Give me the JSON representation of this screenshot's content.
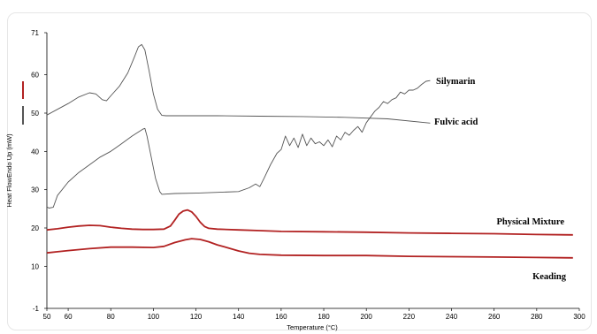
{
  "chart_data": {
    "type": "line",
    "xlabel": "Temperature (°C)",
    "ylabel": "Heat FlowEndo Up (mW)",
    "xlim": [
      50,
      300
    ],
    "ylim": [
      -1,
      71
    ],
    "x_ticks": [
      50,
      60,
      80,
      100,
      120,
      140,
      160,
      180,
      200,
      220,
      240,
      260,
      280,
      300
    ],
    "y_ticks": [
      -1,
      10,
      20,
      30,
      40,
      50,
      60,
      71
    ],
    "grid": false,
    "legend": "none; series named by labels printed beside the curves",
    "series": [
      {
        "name": "Silymarin",
        "color": "#555555",
        "points": [
          [
            50,
            49.5
          ],
          [
            55,
            51
          ],
          [
            60,
            52.5
          ],
          [
            65,
            54.2
          ],
          [
            70,
            55.3
          ],
          [
            73,
            55
          ],
          [
            76,
            53.5
          ],
          [
            78,
            53.2
          ],
          [
            80,
            54.5
          ],
          [
            84,
            57
          ],
          [
            88,
            60.5
          ],
          [
            91,
            64.5
          ],
          [
            93,
            67.3
          ],
          [
            94.5,
            67.9
          ],
          [
            96,
            66.5
          ],
          [
            98,
            61
          ],
          [
            100,
            55
          ],
          [
            102,
            51
          ],
          [
            104,
            49.4
          ],
          [
            106,
            49.3
          ],
          [
            130,
            49.3
          ],
          [
            150,
            49.2
          ],
          [
            170,
            49.1
          ],
          [
            190,
            48.9
          ],
          [
            210,
            48.5
          ],
          [
            230,
            47.4
          ]
        ]
      },
      {
        "name": "Fulvic acid",
        "color": "#555555",
        "points": [
          [
            50,
            25.5
          ],
          [
            51,
            25.2
          ],
          [
            53,
            25.4
          ],
          [
            55,
            28.5
          ],
          [
            60,
            32
          ],
          [
            65,
            34.5
          ],
          [
            70,
            36.5
          ],
          [
            75,
            38.5
          ],
          [
            80,
            40
          ],
          [
            85,
            42
          ],
          [
            90,
            44
          ],
          [
            95,
            45.8
          ],
          [
            96,
            46
          ],
          [
            97,
            44
          ],
          [
            99,
            38.5
          ],
          [
            101,
            33
          ],
          [
            103,
            29.5
          ],
          [
            104,
            28.8
          ],
          [
            110,
            29
          ],
          [
            120,
            29.1
          ],
          [
            130,
            29.3
          ],
          [
            140,
            29.5
          ],
          [
            145,
            30.5
          ],
          [
            148,
            31.5
          ],
          [
            150,
            30.8
          ],
          [
            152,
            33
          ],
          [
            155,
            36.5
          ],
          [
            158,
            39.5
          ],
          [
            160,
            40.5
          ],
          [
            162,
            44
          ],
          [
            164,
            41.5
          ],
          [
            166,
            43.5
          ],
          [
            168,
            41
          ],
          [
            170,
            44.5
          ],
          [
            172,
            41.5
          ],
          [
            174,
            43.5
          ],
          [
            176,
            42
          ],
          [
            178,
            42.5
          ],
          [
            180,
            41.5
          ],
          [
            182,
            43
          ],
          [
            184,
            41.2
          ],
          [
            186,
            44
          ],
          [
            188,
            43
          ],
          [
            190,
            45
          ],
          [
            192,
            44.2
          ],
          [
            194,
            45.5
          ],
          [
            196,
            46.5
          ],
          [
            198,
            45
          ],
          [
            200,
            47.5
          ],
          [
            202,
            49
          ],
          [
            204,
            50.5
          ],
          [
            206,
            51.5
          ],
          [
            208,
            53
          ],
          [
            210,
            52.5
          ],
          [
            212,
            53.5
          ],
          [
            214,
            54
          ],
          [
            216,
            55.5
          ],
          [
            218,
            55
          ],
          [
            220,
            56
          ],
          [
            222,
            56
          ],
          [
            224,
            56.5
          ],
          [
            226,
            57.5
          ],
          [
            228,
            58.3
          ],
          [
            230,
            58.5
          ]
        ]
      },
      {
        "name": "Physical Mixture",
        "color": "#b22222",
        "points": [
          [
            50,
            19.5
          ],
          [
            55,
            19.8
          ],
          [
            60,
            20.2
          ],
          [
            65,
            20.5
          ],
          [
            70,
            20.7
          ],
          [
            75,
            20.6
          ],
          [
            80,
            20.2
          ],
          [
            85,
            19.9
          ],
          [
            90,
            19.7
          ],
          [
            95,
            19.6
          ],
          [
            100,
            19.6
          ],
          [
            105,
            19.7
          ],
          [
            108,
            20.5
          ],
          [
            110,
            22
          ],
          [
            112,
            23.6
          ],
          [
            114,
            24.4
          ],
          [
            116,
            24.7
          ],
          [
            118,
            24.2
          ],
          [
            120,
            23
          ],
          [
            122,
            21.5
          ],
          [
            124,
            20.4
          ],
          [
            126,
            19.9
          ],
          [
            130,
            19.7
          ],
          [
            140,
            19.5
          ],
          [
            150,
            19.3
          ],
          [
            160,
            19.1
          ],
          [
            180,
            19
          ],
          [
            200,
            18.9
          ],
          [
            220,
            18.7
          ],
          [
            240,
            18.6
          ],
          [
            260,
            18.5
          ],
          [
            280,
            18.3
          ],
          [
            297,
            18.2
          ]
        ]
      },
      {
        "name": "Keading",
        "color": "#b22222",
        "points": [
          [
            50,
            13.5
          ],
          [
            55,
            13.8
          ],
          [
            60,
            14.1
          ],
          [
            70,
            14.6
          ],
          [
            80,
            15
          ],
          [
            90,
            15
          ],
          [
            100,
            14.9
          ],
          [
            105,
            15.2
          ],
          [
            110,
            16.2
          ],
          [
            115,
            16.9
          ],
          [
            118,
            17.2
          ],
          [
            122,
            17
          ],
          [
            126,
            16.4
          ],
          [
            130,
            15.6
          ],
          [
            135,
            14.8
          ],
          [
            140,
            14
          ],
          [
            145,
            13.4
          ],
          [
            150,
            13.1
          ],
          [
            160,
            12.9
          ],
          [
            180,
            12.8
          ],
          [
            200,
            12.8
          ],
          [
            220,
            12.6
          ],
          [
            240,
            12.5
          ],
          [
            260,
            12.4
          ],
          [
            280,
            12.3
          ],
          [
            297,
            12.2
          ]
        ]
      }
    ]
  }
}
